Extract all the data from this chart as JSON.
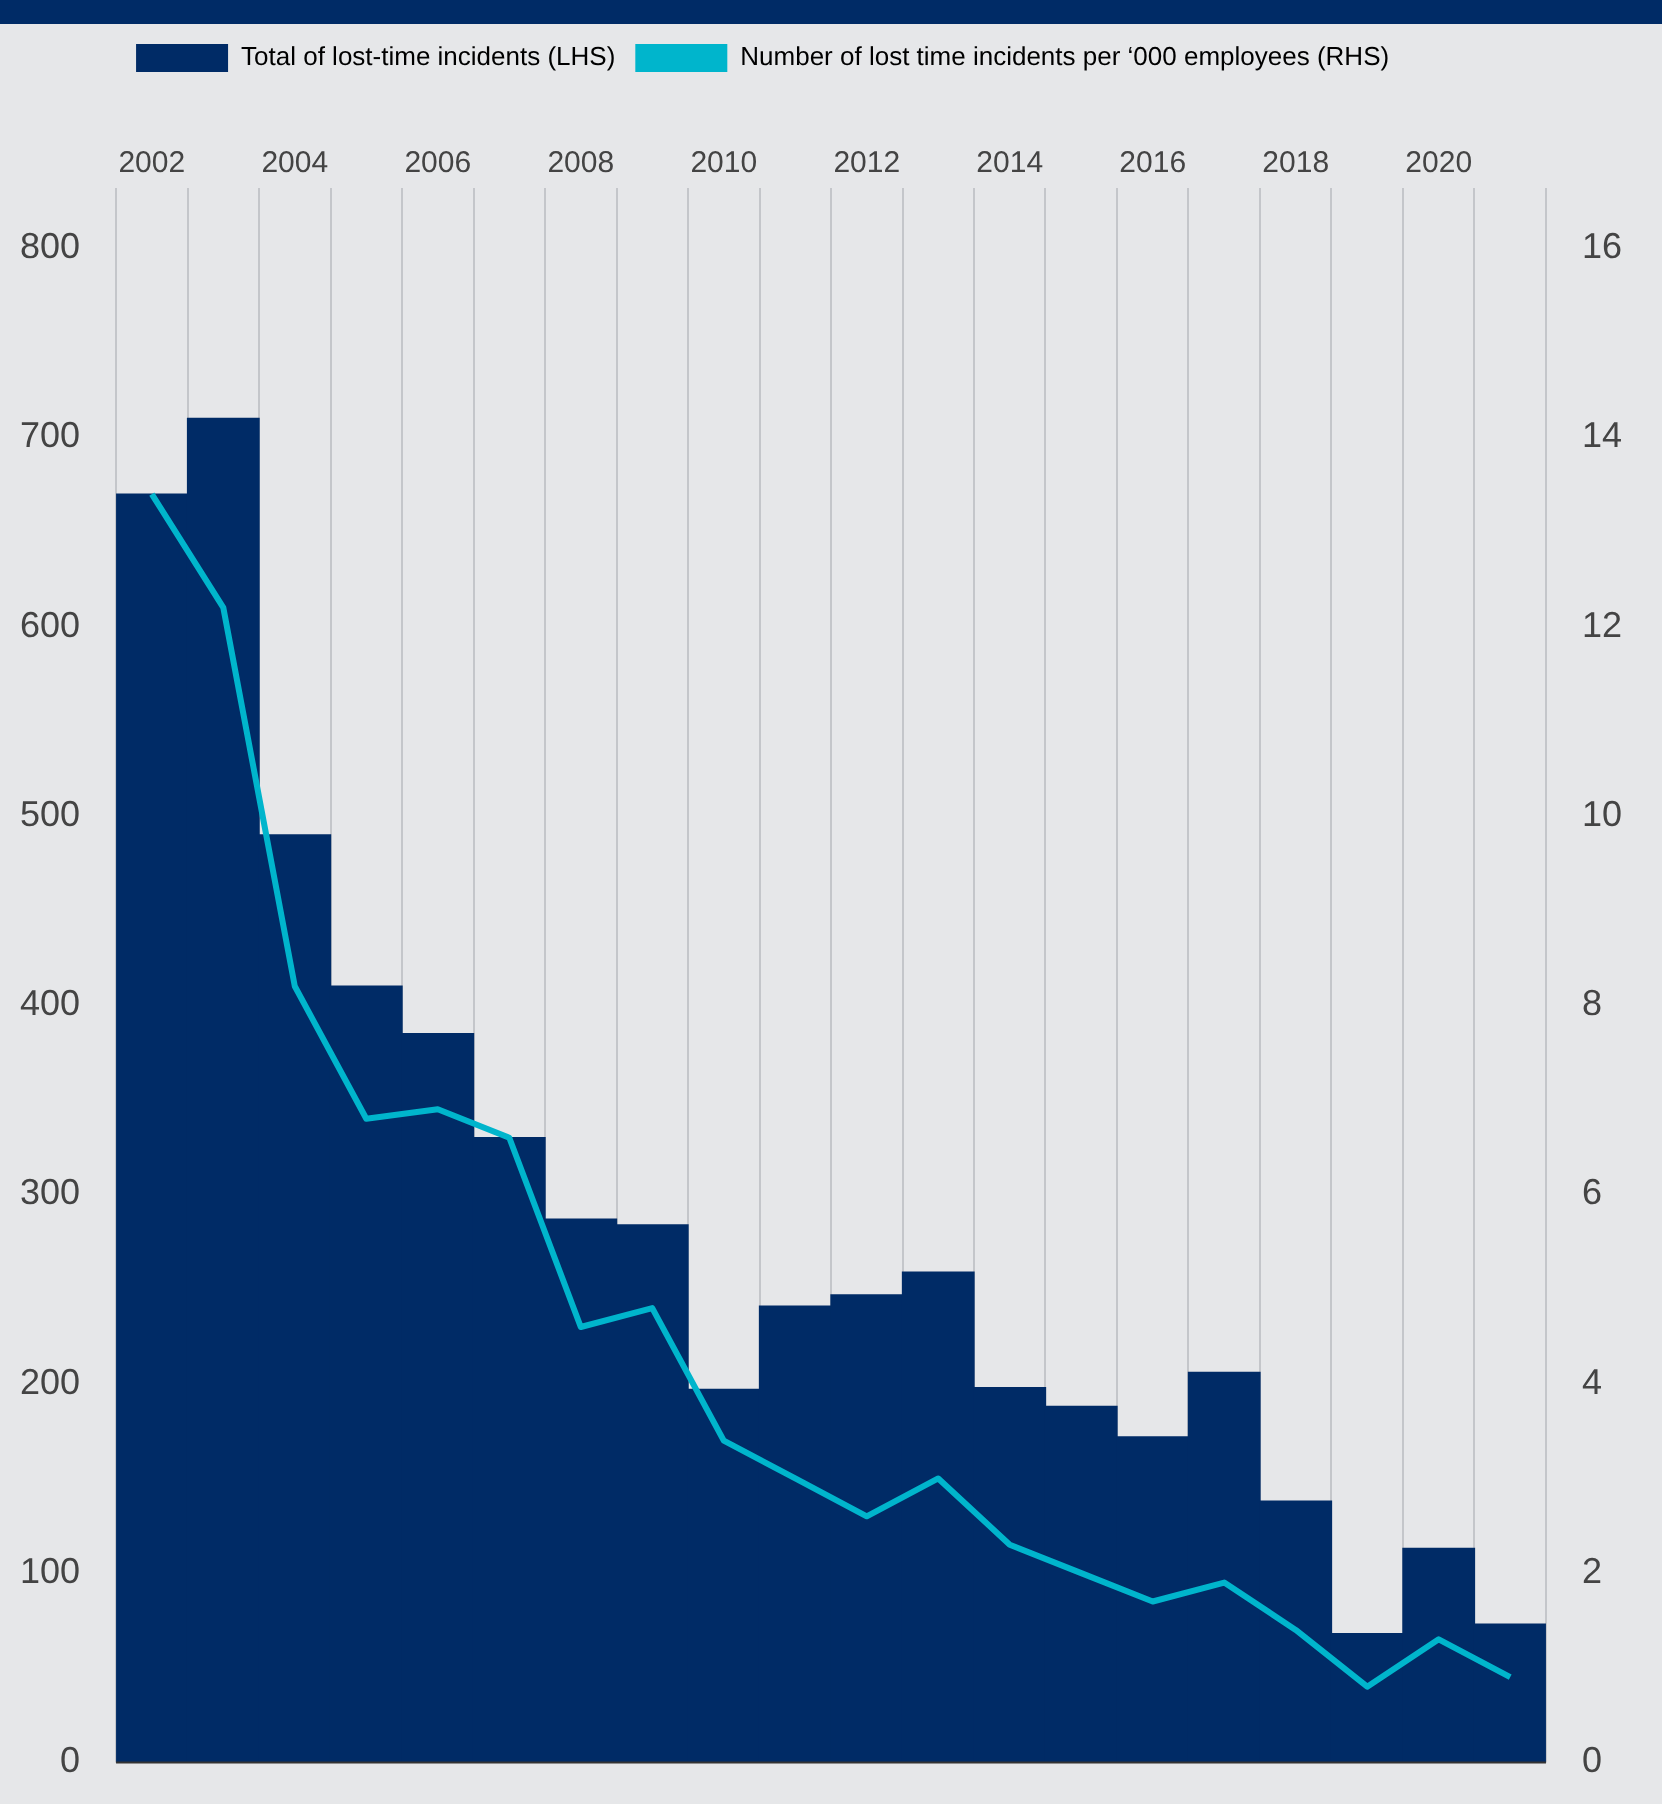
{
  "chart_data": {
    "type": "bar",
    "categories": [
      "2002",
      null,
      "2004",
      null,
      "2006",
      null,
      "2008",
      null,
      "2010",
      null,
      "2012",
      null,
      "2014",
      null,
      "2016",
      null,
      "2018",
      null,
      "2020",
      null
    ],
    "series": [
      {
        "name": "Total of lost-time incidents (LHS)",
        "color": "#002b66",
        "values": [
          670,
          710,
          490,
          410,
          385,
          330,
          287,
          284,
          197,
          241,
          247,
          259,
          198,
          188,
          172,
          206,
          138,
          68,
          113,
          73
        ]
      },
      {
        "name": "Number of lost time incidents per ‘000 employees (RHS)",
        "type": "line",
        "axis": "y2",
        "color": "#00b5cc",
        "values": [
          13.4,
          12.2,
          8.2,
          6.8,
          6.9,
          6.6,
          4.6,
          4.8,
          3.4,
          3.0,
          2.6,
          3.0,
          2.3,
          2.0,
          1.7,
          1.9,
          1.4,
          0.8,
          1.3,
          0.9
        ]
      }
    ],
    "ylim": [
      0,
      800
    ],
    "yticks": [
      0,
      100,
      200,
      300,
      400,
      500,
      600,
      700,
      800
    ],
    "y2lim": [
      0,
      16
    ],
    "y2ticks": [
      0,
      2,
      4,
      6,
      8,
      10,
      12,
      14,
      16
    ],
    "grid": "x",
    "legend": "top left",
    "marker": "none",
    "line_style": "solid"
  }
}
